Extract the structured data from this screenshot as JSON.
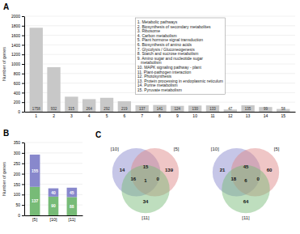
{
  "chart_data": [
    {
      "type": "bar",
      "title": "A",
      "categories": [
        "1",
        "2",
        "3",
        "4",
        "5",
        "6",
        "7",
        "8",
        "9",
        "10",
        "11",
        "12",
        "13",
        "14",
        "15"
      ],
      "values": [
        1758,
        932,
        315,
        264,
        292,
        219,
        137,
        141,
        124,
        130,
        133,
        47,
        135,
        99,
        58
      ],
      "color": "#c8c8c8",
      "ylabel": "Number of genes",
      "ylim": [
        0,
        2000
      ],
      "yticks": [
        0,
        200,
        400,
        600,
        800,
        1000,
        1200,
        1400,
        1600,
        1800,
        2000
      ],
      "grid": true,
      "data_labels": true,
      "annotations": [
        "1. Metabolic pathways",
        "2. Biosynthesis of secondary metabolites",
        "3. Ribosome",
        "4. Carbon metabolism",
        "5. Plant hormone signal transduction",
        "6. Biosynthesis of amino acids",
        "7. Glycolysis / Gluconeogenesis",
        "8. Starch and sucrose metabolism",
        "9. Amino sugar and nucleotide sugar\n   metabolism",
        "10. MAPK signaling pathway - plant",
        "11. Plant-pathogen interaction",
        "12. Photosynthesis",
        "13. Protein processing in endoplasmic reticulum",
        "14. Purine metabolism",
        "15. Pyruvate metabolism"
      ]
    },
    {
      "type": "bar",
      "title": "B",
      "stacked": true,
      "categories": [
        "[5]",
        "[10]",
        "[11]"
      ],
      "series": [
        {
          "color": "#77bb77",
          "values": [
            137,
            90,
            88
          ]
        },
        {
          "color": "#8888cc",
          "values": [
            155,
            40,
            45
          ]
        }
      ],
      "ylabel": "Number of genes",
      "ylim": [
        0,
        350
      ],
      "yticks": [
        0,
        50,
        100,
        150,
        200,
        250,
        300,
        350
      ],
      "grid": true,
      "data_labels": true
    },
    {
      "type": "venn",
      "title": "C",
      "sets": [
        {
          "name": "[10]",
          "color": "#8888cc"
        },
        {
          "name": "[5]",
          "color": "#dd8888"
        },
        {
          "name": "[11]",
          "color": "#77bb77"
        }
      ],
      "values": [
        14,
        139,
        15,
        34,
        16,
        0,
        1
      ],
      "data_labels": true
    },
    {
      "type": "venn",
      "sets": [
        {
          "name": "[10]",
          "color": "#8888cc"
        },
        {
          "name": "[5]",
          "color": "#dd8888"
        },
        {
          "name": "[11]",
          "color": "#77bb77"
        }
      ],
      "values": [
        21,
        60,
        45,
        64,
        18,
        0,
        6
      ],
      "data_labels": true
    }
  ]
}
